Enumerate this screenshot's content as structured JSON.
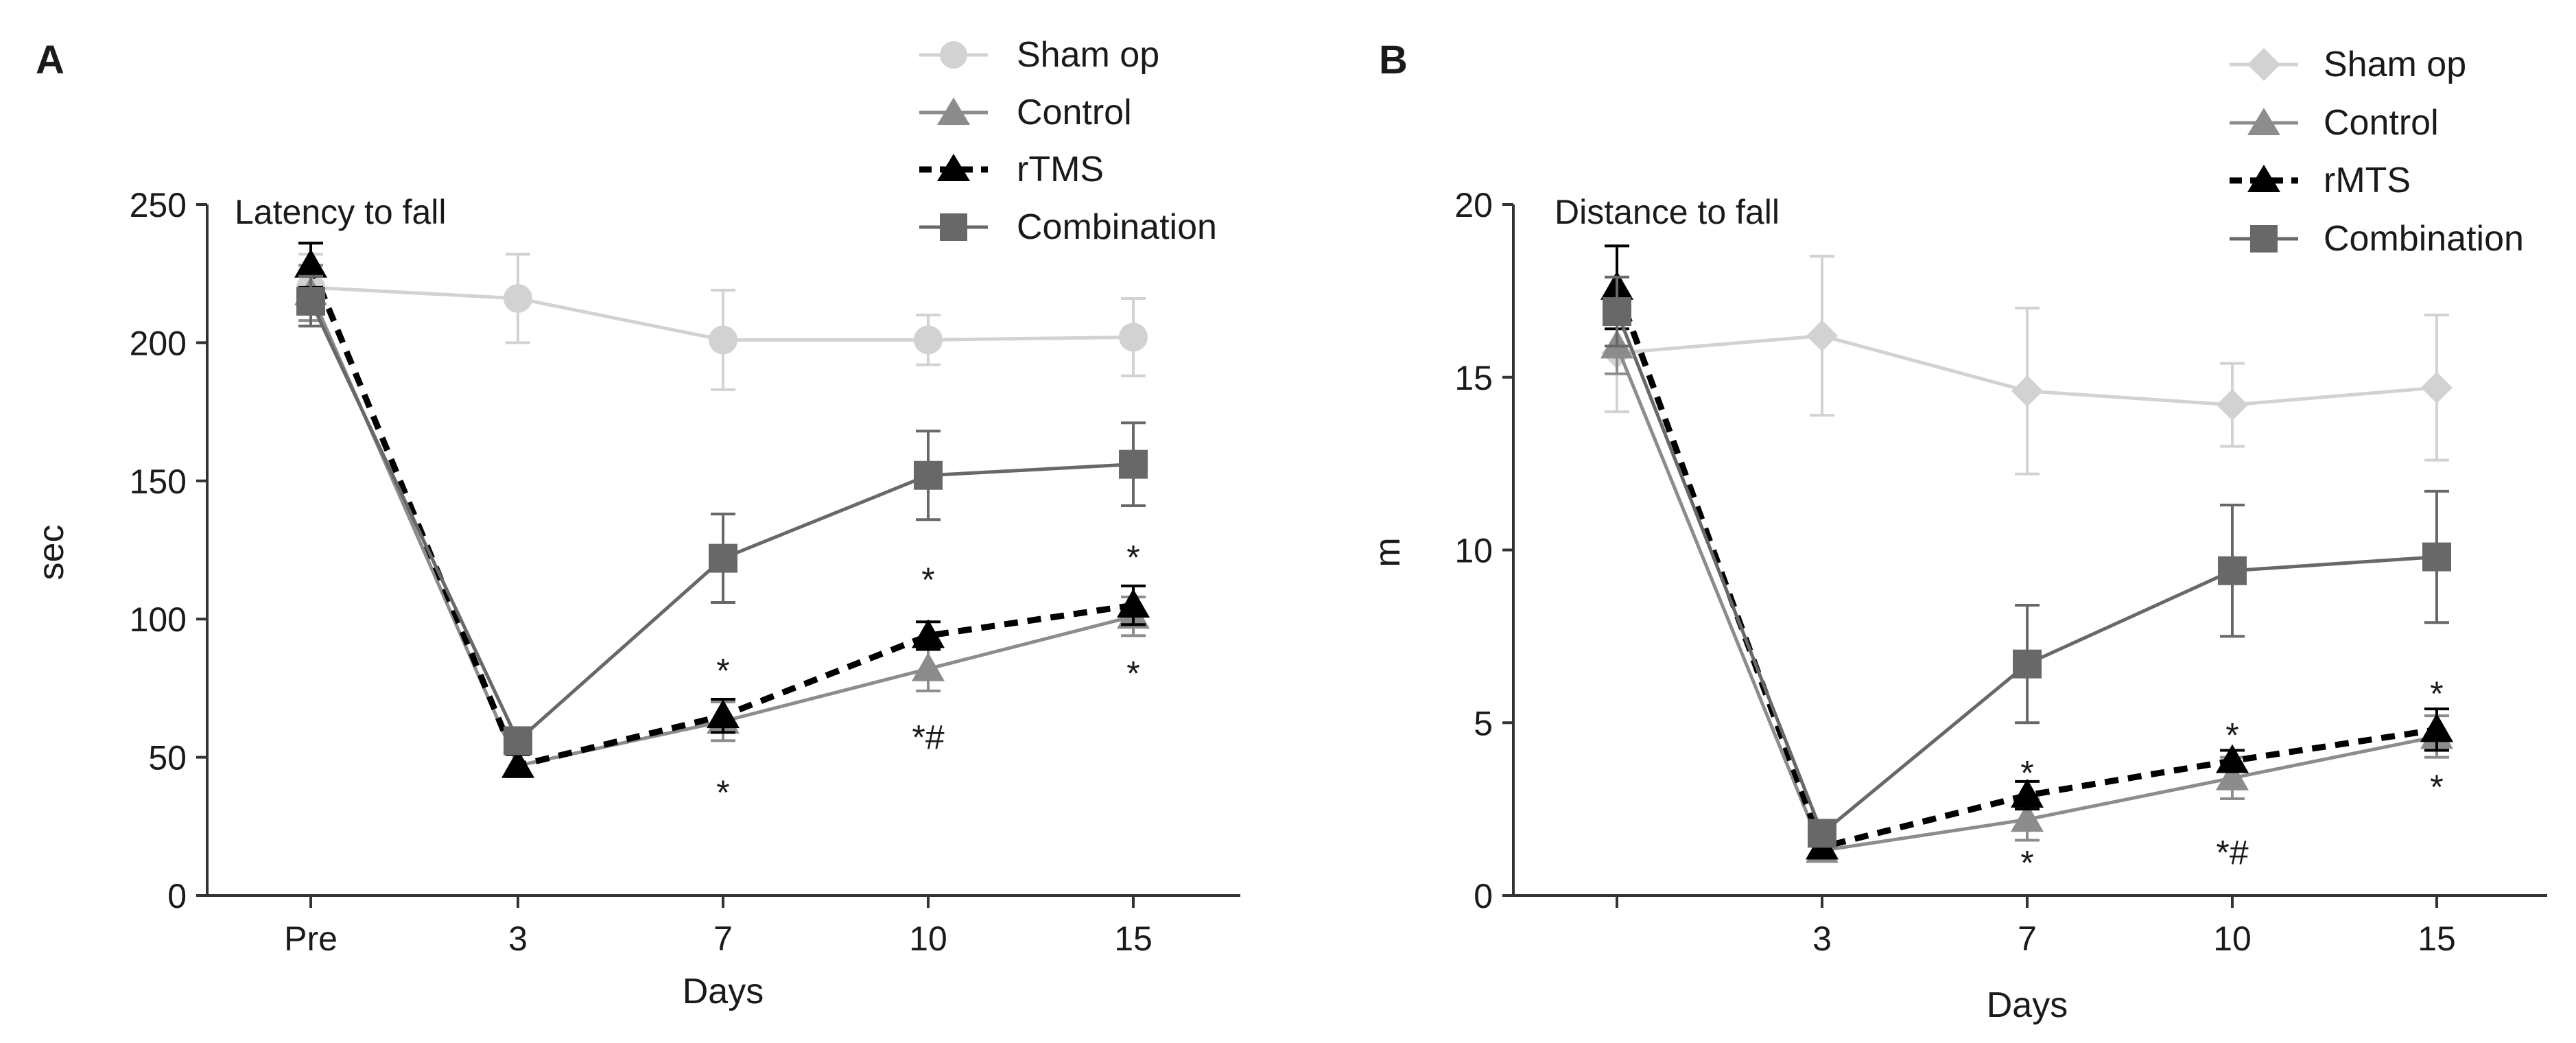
{
  "figure": {
    "panels": [
      {
        "letter": "A",
        "inner_title": "Latency to fall",
        "ylabel": "sec",
        "xlabel": "Days",
        "yticks": [
          "0",
          "50",
          "100",
          "150",
          "200",
          "250"
        ],
        "xticks": [
          "Pre",
          "3",
          "7",
          "10",
          "15"
        ],
        "legend": [
          "Sham op",
          "Control",
          "rTMS",
          "Combination"
        ],
        "annotations": [
          {
            "text": "*",
            "x": "7",
            "y": 82,
            "pos": "above"
          },
          {
            "text": "*",
            "x": "7",
            "y": 38,
            "pos": "below"
          },
          {
            "text": "*",
            "x": "10",
            "y": 115,
            "pos": "above"
          },
          {
            "text": "*#",
            "x": "10",
            "y": 58,
            "pos": "below"
          },
          {
            "text": "*",
            "x": "15",
            "y": 123,
            "pos": "above"
          },
          {
            "text": "*",
            "x": "15",
            "y": 81,
            "pos": "below"
          }
        ]
      },
      {
        "letter": "B",
        "inner_title": "Distance to fall",
        "ylabel": "m",
        "xlabel": "Days",
        "yticks": [
          "0",
          "5",
          "10",
          "15",
          "20"
        ],
        "xticks": [
          "",
          "3",
          "7",
          "10",
          "15"
        ],
        "legend": [
          "Sham op",
          "Control",
          "rMTS",
          "Combination"
        ],
        "annotations": [
          {
            "text": "*",
            "x": "7",
            "y": 3.6,
            "pos": "above"
          },
          {
            "text": "*",
            "x": "7",
            "y": 1.0,
            "pos": "below"
          },
          {
            "text": "*",
            "x": "10",
            "y": 4.7,
            "pos": "above"
          },
          {
            "text": "*#",
            "x": "10",
            "y": 1.3,
            "pos": "below"
          },
          {
            "text": "*",
            "x": "15",
            "y": 5.9,
            "pos": "above"
          },
          {
            "text": "*",
            "x": "15",
            "y": 3.2,
            "pos": "below"
          }
        ]
      }
    ]
  },
  "chart_data": [
    {
      "type": "line",
      "title": "Latency to fall",
      "xlabel": "Days",
      "ylabel": "sec",
      "categories": [
        "Pre",
        "3",
        "7",
        "10",
        "15"
      ],
      "ylim": [
        0,
        250
      ],
      "grid": false,
      "legend_position": "top-right",
      "series": [
        {
          "name": "Sham op",
          "marker": "circle",
          "color": "#d2d2d2",
          "dashed": false,
          "values": [
            220,
            216,
            201,
            201,
            202
          ],
          "errors": [
            12,
            16,
            18,
            9,
            14
          ]
        },
        {
          "name": "Control",
          "marker": "triangle",
          "color": "#8c8c8c",
          "dashed": false,
          "values": [
            218,
            47,
            63,
            82,
            101
          ],
          "errors": [
            10,
            4,
            7,
            8,
            7
          ]
        },
        {
          "name": "rTMS",
          "marker": "triangle",
          "color": "#000000",
          "dashed": true,
          "values": [
            228,
            47,
            65,
            94,
            105
          ],
          "errors": [
            8,
            4,
            6,
            5,
            7
          ]
        },
        {
          "name": "Combination",
          "marker": "square",
          "color": "#686868",
          "dashed": false,
          "values": [
            215,
            56,
            122,
            152,
            156
          ],
          "errors": [
            9,
            4,
            16,
            16,
            15
          ]
        }
      ]
    },
    {
      "type": "line",
      "title": "Distance to fall",
      "xlabel": "Days",
      "ylabel": "m",
      "categories": [
        "",
        "3",
        "7",
        "10",
        "15"
      ],
      "ylim": [
        0,
        20
      ],
      "grid": false,
      "legend_position": "top-right",
      "series": [
        {
          "name": "Sham op",
          "marker": "diamond",
          "color": "#d2d2d2",
          "dashed": false,
          "values": [
            15.7,
            16.2,
            14.6,
            14.2,
            14.7
          ],
          "errors": [
            1.7,
            2.3,
            2.4,
            1.2,
            2.1
          ]
        },
        {
          "name": "Control",
          "marker": "triangle",
          "color": "#8c8c8c",
          "dashed": false,
          "values": [
            15.9,
            1.3,
            2.2,
            3.4,
            4.6
          ],
          "errors": [
            0.8,
            0.3,
            0.6,
            0.6,
            0.6
          ]
        },
        {
          "name": "rMTS",
          "marker": "triangle",
          "color": "#000000",
          "dashed": true,
          "values": [
            17.6,
            1.4,
            2.9,
            3.9,
            4.8
          ],
          "errors": [
            1.2,
            0.3,
            0.4,
            0.3,
            0.6
          ]
        },
        {
          "name": "Combination",
          "marker": "square",
          "color": "#686868",
          "dashed": false,
          "values": [
            16.9,
            1.8,
            6.7,
            9.4,
            9.8
          ],
          "errors": [
            1.0,
            0.3,
            1.7,
            1.9,
            1.9
          ]
        }
      ]
    }
  ]
}
